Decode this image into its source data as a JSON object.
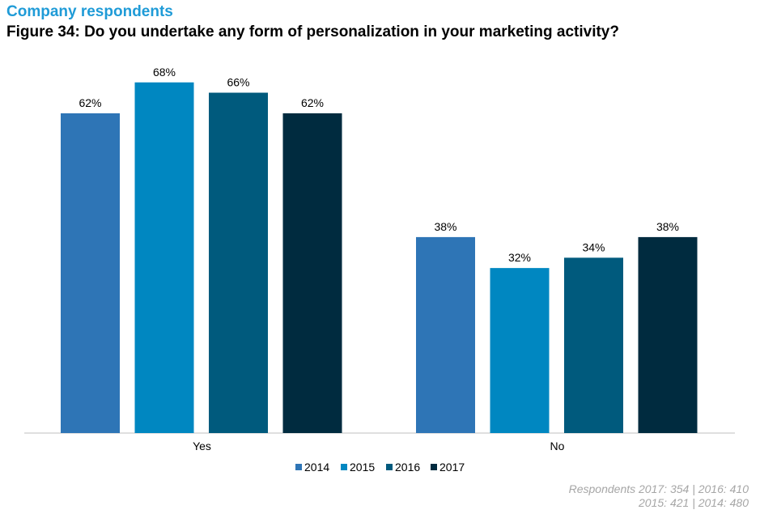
{
  "header": {
    "subtitle": "Company respondents",
    "title": "Figure 34: Do you undertake any form of personalization in your marketing activity?"
  },
  "chart_data": {
    "type": "bar",
    "categories": [
      "Yes",
      "No"
    ],
    "series": [
      {
        "name": "2014",
        "values": [
          62,
          38
        ],
        "color": "#2E75B6"
      },
      {
        "name": "2015",
        "values": [
          68,
          32
        ],
        "color": "#0087C1"
      },
      {
        "name": "2016",
        "values": [
          66,
          34
        ],
        "color": "#005A7D"
      },
      {
        "name": "2017",
        "values": [
          62,
          38
        ],
        "color": "#002B3F"
      }
    ],
    "value_suffix": "%",
    "ylim": [
      0,
      70
    ],
    "grid": false,
    "legend": "bottom"
  },
  "footer": {
    "line1": "Respondents 2017: 354 | 2016: 410",
    "line2": "2015: 421 | 2014: 480"
  }
}
